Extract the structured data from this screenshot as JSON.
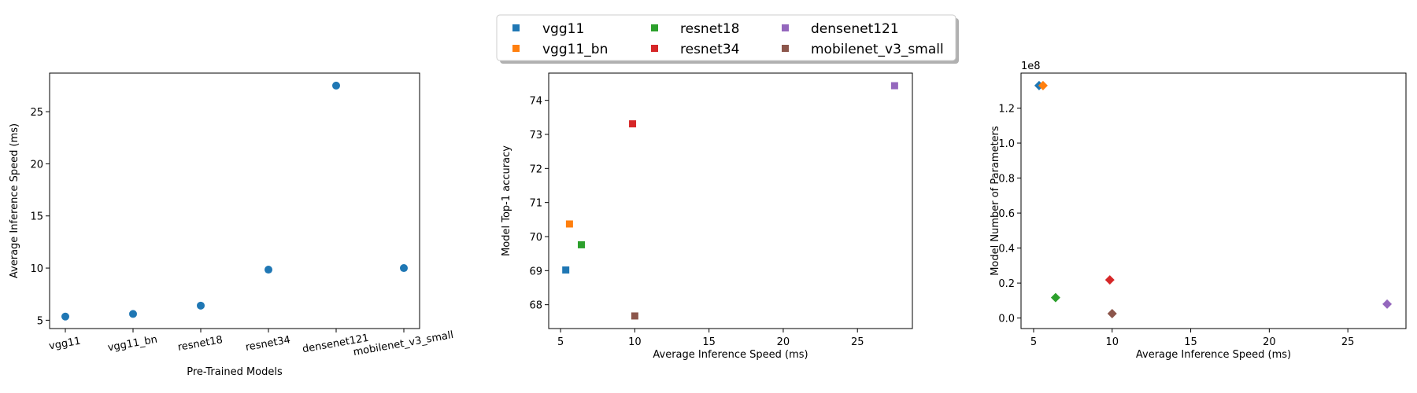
{
  "chart_data": [
    {
      "type": "scatter",
      "title": "",
      "xlabel": "Pre-Trained Models",
      "ylabel": "Average Inference Speed (ms)",
      "categories": [
        "vgg11",
        "vgg11_bn",
        "resnet18",
        "resnet34",
        "densenet121",
        "mobilenet_v3_small"
      ],
      "values": [
        5.35,
        5.6,
        6.4,
        9.85,
        27.5,
        10.0
      ],
      "ylim": [
        4.2,
        28.7
      ],
      "yticks": [
        5,
        10,
        15,
        20,
        25
      ],
      "marker": "circle",
      "color": "#1f77b4",
      "grid": false
    },
    {
      "type": "scatter",
      "title": "",
      "xlabel": "Average Inference Speed (ms)",
      "ylabel": "Model Top-1 accuracy",
      "xlim": [
        4.2,
        28.7
      ],
      "ylim": [
        67.3,
        74.8
      ],
      "xticks": [
        5,
        10,
        15,
        20,
        25
      ],
      "yticks": [
        68,
        69,
        70,
        71,
        72,
        73,
        74
      ],
      "marker": "square",
      "grid": false,
      "series": [
        {
          "name": "vgg11",
          "x": 5.35,
          "y": 69.02
        },
        {
          "name": "vgg11_bn",
          "x": 5.6,
          "y": 70.37
        },
        {
          "name": "resnet18",
          "x": 6.4,
          "y": 69.76
        },
        {
          "name": "resnet34",
          "x": 9.85,
          "y": 73.31
        },
        {
          "name": "densenet121",
          "x": 27.5,
          "y": 74.43
        },
        {
          "name": "mobilenet_v3_small",
          "x": 10.0,
          "y": 67.67
        }
      ]
    },
    {
      "type": "scatter",
      "title": "",
      "xlabel": "Average Inference Speed (ms)",
      "ylabel": "Model Number of Parameters",
      "offset_text": "1e8",
      "xlim": [
        4.2,
        28.7
      ],
      "ylim": [
        -0.06,
        1.4
      ],
      "xticks": [
        5,
        10,
        15,
        20,
        25
      ],
      "yticks": [
        "0.0",
        "0.2",
        "0.4",
        "0.6",
        "0.8",
        "1.0",
        "1.2"
      ],
      "marker": "diamond",
      "grid": false,
      "series": [
        {
          "name": "vgg11",
          "x": 5.35,
          "y": 1.3286
        },
        {
          "name": "vgg11_bn",
          "x": 5.6,
          "y": 1.3287
        },
        {
          "name": "resnet18",
          "x": 6.4,
          "y": 0.1169
        },
        {
          "name": "resnet34",
          "x": 9.85,
          "y": 0.218
        },
        {
          "name": "densenet121",
          "x": 27.5,
          "y": 0.0798
        },
        {
          "name": "mobilenet_v3_small",
          "x": 10.0,
          "y": 0.0254
        }
      ]
    }
  ],
  "legend": {
    "placement": "upper-center",
    "entries": [
      {
        "label": "vgg11",
        "color": "#1f77b4"
      },
      {
        "label": "vgg11_bn",
        "color": "#ff7f0e"
      },
      {
        "label": "resnet18",
        "color": "#2ca02c"
      },
      {
        "label": "resnet34",
        "color": "#d62728"
      },
      {
        "label": "densenet121",
        "color": "#9467bd"
      },
      {
        "label": "mobilenet_v3_small",
        "color": "#8c564b"
      }
    ]
  }
}
